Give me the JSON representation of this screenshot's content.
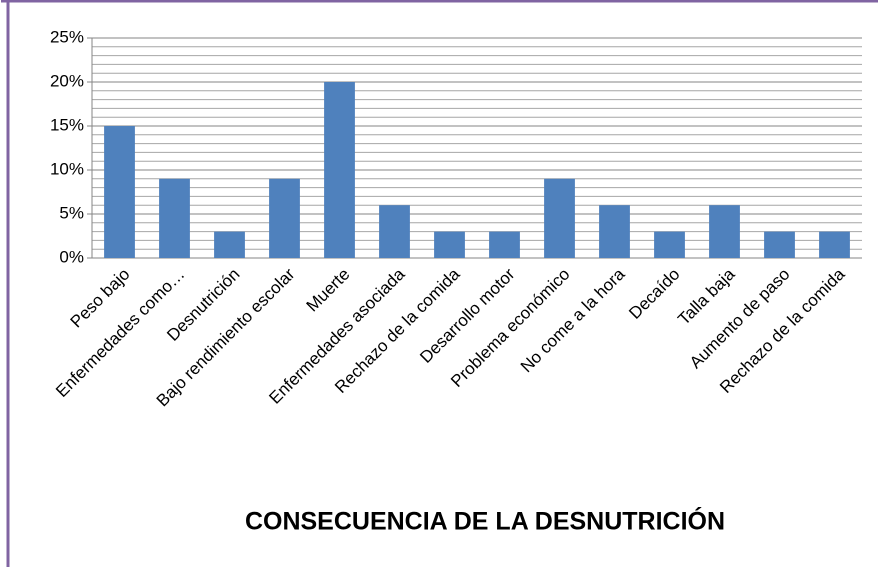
{
  "chart_data": {
    "type": "bar",
    "title": "CONSECUENCIA DE LA DESNUTRICIÓN",
    "categories": [
      "Peso bajo",
      "Enfermedades como…",
      "Desnutrición",
      "Bajo rendimiento escolar",
      "Muerte",
      "Enfermedades asociada",
      "Rechazo de la comida",
      "Desarrollo motor",
      "Problema económico",
      "No come a la hora",
      "Decaído",
      "Talla baja",
      "Aumento de paso",
      "Rechazo de la comida"
    ],
    "values": [
      15,
      9,
      3,
      9,
      20,
      6,
      3,
      3,
      9,
      6,
      3,
      6,
      3,
      3
    ],
    "color": "#4f81bd",
    "ylim": [
      0,
      25
    ],
    "yticks": [
      {
        "value": 0,
        "label": "0%"
      },
      {
        "value": 5,
        "label": "5%"
      },
      {
        "value": 10,
        "label": "10%"
      },
      {
        "value": 15,
        "label": "15%"
      },
      {
        "value": 20,
        "label": "20%"
      },
      {
        "value": 25,
        "label": "25%"
      }
    ],
    "grid": true,
    "minor_grid_step": 1
  }
}
